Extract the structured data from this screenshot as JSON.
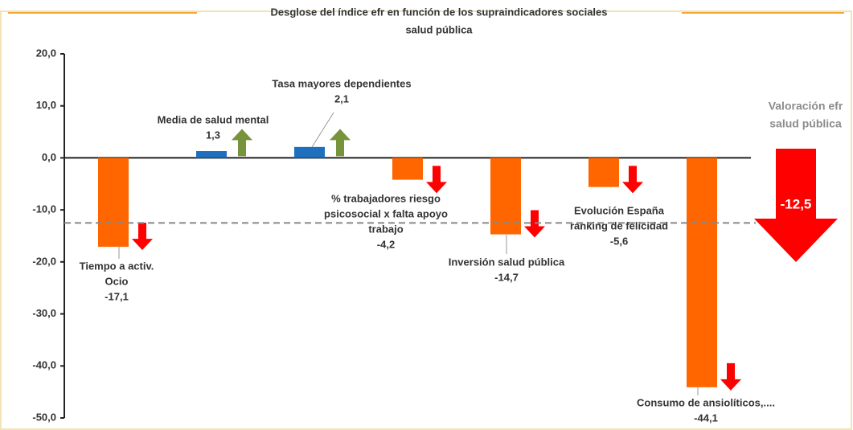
{
  "chart_data": {
    "type": "bar",
    "title": [
      "Desglose del índice efr en función de los supraindicadores sociales",
      "salud pública"
    ],
    "categories": [
      [
        "Tiempo a activ.",
        "Ocio"
      ],
      [
        "Media de salud mental"
      ],
      [
        "Tasa mayores dependientes"
      ],
      [
        "% trabajadores riesgo",
        "psicosocial x falta apoyo",
        "trabajo"
      ],
      [
        "Inversión salud pública"
      ],
      [
        "Evolución España",
        "ranking de felicidad"
      ],
      [
        "Consumo de ansiolíticos,...."
      ]
    ],
    "values": [
      -17.1,
      1.3,
      2.1,
      -4.2,
      -14.7,
      -5.6,
      -44.1
    ],
    "value_labels": [
      "-17,1",
      "1,3",
      "2,1",
      "-4,2",
      "-14,7",
      "-5,6",
      "-44,1"
    ],
    "colors": [
      "#ff6600",
      "#1f6fbf",
      "#1f6fbf",
      "#ff6600",
      "#ff6600",
      "#ff6600",
      "#ff6600"
    ],
    "ylim": [
      -50,
      20
    ],
    "yticks": [
      {
        "value": 20,
        "label": "20,0"
      },
      {
        "value": 10,
        "label": "10,0"
      },
      {
        "value": 0,
        "label": "0,0"
      },
      {
        "value": -10,
        "label": "-10,0"
      },
      {
        "value": -20,
        "label": "-20,0"
      },
      {
        "value": -30,
        "label": "-30,0"
      },
      {
        "value": -40,
        "label": "-40,0"
      },
      {
        "value": -50,
        "label": "-50,0"
      }
    ],
    "reference": {
      "label": [
        "Valoración efr",
        "salud pública"
      ],
      "value": -12.5,
      "value_label": "-12,5"
    }
  }
}
